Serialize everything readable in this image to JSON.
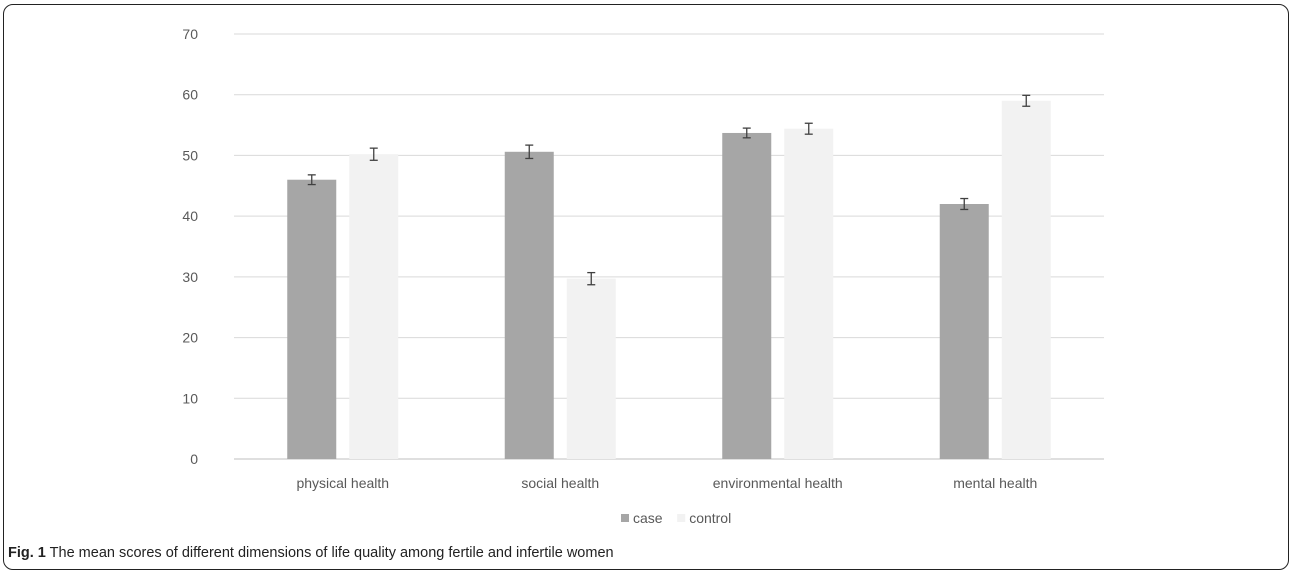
{
  "caption": {
    "label": "Fig. 1",
    "text": "The mean scores of different dimensions of life quality among fertile and infertile women"
  },
  "chart_data": {
    "type": "bar",
    "title": "",
    "xlabel": "",
    "ylabel": "",
    "categories": [
      "physical health",
      "social health",
      "environmental health",
      "mental health"
    ],
    "series": [
      {
        "name": "case",
        "color": "#a6a6a6",
        "values": [
          46,
          50.6,
          53.7,
          42
        ],
        "error": [
          0.8,
          1.1,
          0.8,
          0.9
        ]
      },
      {
        "name": "control",
        "color": "#f2f2f2",
        "values": [
          50.2,
          29.7,
          54.4,
          59
        ],
        "error": [
          1.0,
          1.0,
          0.9,
          0.9
        ]
      }
    ],
    "ylim": [
      0,
      70
    ],
    "yticks": [
      0,
      10,
      20,
      30,
      40,
      50,
      60,
      70
    ],
    "grid": true,
    "legend": "bottom",
    "error_bars": true
  }
}
